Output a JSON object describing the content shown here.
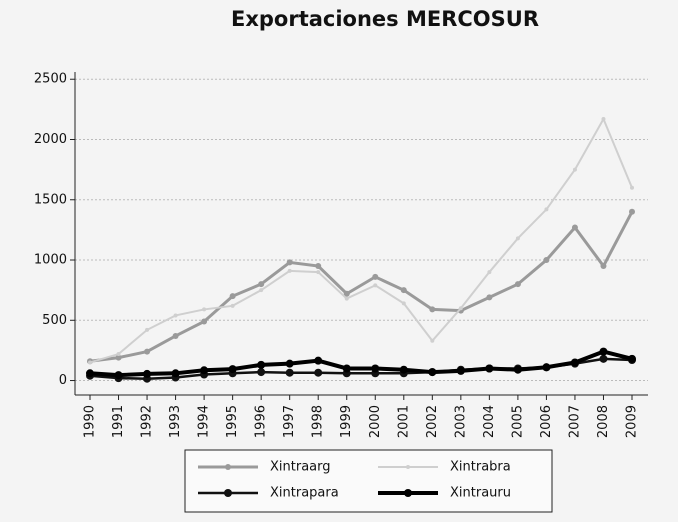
{
  "chart_data": {
    "type": "line",
    "title": "Exportaciones MERCOSUR",
    "categories": [
      "1990",
      "1991",
      "1992",
      "1993",
      "1994",
      "1995",
      "1996",
      "1997",
      "1998",
      "1999",
      "2000",
      "2001",
      "2002",
      "2003",
      "2004",
      "2005",
      "2006",
      "2007",
      "2008",
      "2009"
    ],
    "series": [
      {
        "name": "Xintraarg",
        "color": "#9a9a9a",
        "values": [
          160,
          190,
          240,
          370,
          490,
          700,
          800,
          980,
          950,
          720,
          860,
          750,
          590,
          580,
          690,
          800,
          1000,
          1270,
          950,
          1400
        ]
      },
      {
        "name": "Xintrabra",
        "color": "#cfcfcf",
        "values": [
          150,
          220,
          420,
          540,
          590,
          620,
          750,
          910,
          900,
          680,
          790,
          640,
          330,
          600,
          900,
          1180,
          1420,
          1750,
          2170,
          1600
        ]
      },
      {
        "name": "Xintrapara",
        "color": "#111111",
        "values": [
          40,
          20,
          15,
          25,
          50,
          60,
          70,
          65,
          65,
          60,
          60,
          60,
          70,
          90,
          100,
          100,
          110,
          140,
          180,
          170
        ]
      },
      {
        "name": "Xintrauru",
        "color": "#000000",
        "values": [
          60,
          45,
          55,
          60,
          85,
          95,
          130,
          140,
          165,
          100,
          100,
          90,
          70,
          80,
          100,
          90,
          110,
          150,
          240,
          180
        ]
      }
    ],
    "ylim": [
      -120,
      2560
    ],
    "yticks": [
      0,
      500,
      1000,
      1500,
      2000,
      2500
    ],
    "grid": true
  }
}
